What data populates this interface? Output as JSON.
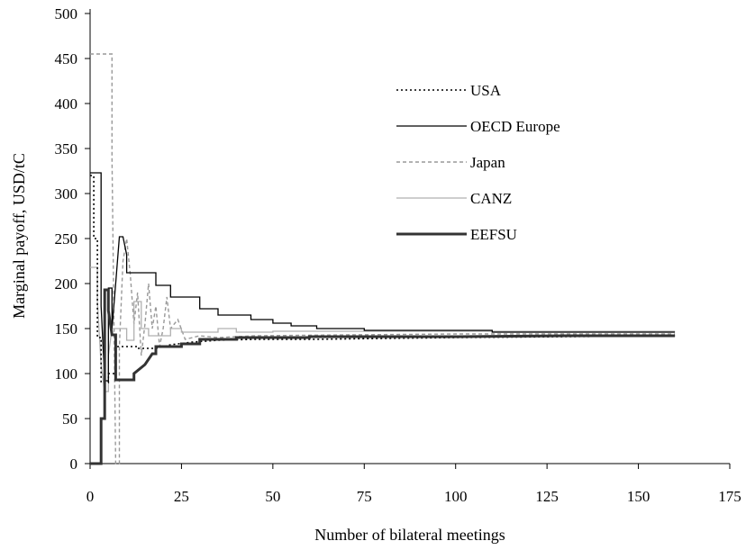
{
  "chart_data": {
    "type": "line",
    "title": "",
    "xlabel": "Number of bilateral meetings",
    "ylabel": "Marginal payoff, USD/tC",
    "xlim": [
      0,
      175
    ],
    "ylim": [
      0,
      500
    ],
    "xticks": [
      0,
      25,
      50,
      75,
      100,
      125,
      150,
      175
    ],
    "yticks": [
      0,
      50,
      100,
      150,
      200,
      250,
      300,
      350,
      400,
      450,
      500
    ],
    "grid": false,
    "legend_position": "top-right",
    "series": [
      {
        "name": "USA",
        "style": "dotted",
        "color": "#000000",
        "points": [
          [
            0,
            320
          ],
          [
            1,
            320
          ],
          [
            1,
            250
          ],
          [
            2,
            250
          ],
          [
            2,
            140
          ],
          [
            3,
            140
          ],
          [
            3,
            90
          ],
          [
            5,
            90
          ],
          [
            5,
            100
          ],
          [
            7,
            100
          ],
          [
            7,
            130
          ],
          [
            13,
            130
          ],
          [
            13,
            128
          ],
          [
            18,
            128
          ],
          [
            22,
            132
          ],
          [
            28,
            135
          ],
          [
            35,
            137
          ],
          [
            45,
            138
          ],
          [
            60,
            138
          ],
          [
            80,
            139
          ],
          [
            100,
            140
          ],
          [
            130,
            141
          ],
          [
            160,
            142
          ]
        ]
      },
      {
        "name": "OECD Europe",
        "style": "solid-thin",
        "color": "#000000",
        "points": [
          [
            0,
            323
          ],
          [
            3,
            323
          ],
          [
            3,
            175
          ],
          [
            4,
            92
          ],
          [
            5,
            92
          ],
          [
            5,
            195
          ],
          [
            6,
            195
          ],
          [
            6,
            150
          ],
          [
            7,
            200
          ],
          [
            8,
            252
          ],
          [
            9,
            252
          ],
          [
            10,
            232
          ],
          [
            10,
            212
          ],
          [
            18,
            212
          ],
          [
            18,
            198
          ],
          [
            22,
            198
          ],
          [
            22,
            185
          ],
          [
            30,
            185
          ],
          [
            30,
            172
          ],
          [
            35,
            172
          ],
          [
            35,
            165
          ],
          [
            44,
            165
          ],
          [
            44,
            160
          ],
          [
            50,
            160
          ],
          [
            50,
            156
          ],
          [
            55,
            156
          ],
          [
            55,
            153
          ],
          [
            62,
            153
          ],
          [
            62,
            150
          ],
          [
            75,
            150
          ],
          [
            75,
            148
          ],
          [
            110,
            148
          ],
          [
            110,
            146
          ],
          [
            160,
            146
          ]
        ]
      },
      {
        "name": "Japan",
        "style": "dashed",
        "color": "#999999",
        "points": [
          [
            0,
            455
          ],
          [
            6,
            455
          ],
          [
            6,
            340
          ],
          [
            7,
            0
          ],
          [
            8,
            0
          ],
          [
            8,
            130
          ],
          [
            9,
            225
          ],
          [
            10,
            250
          ],
          [
            11,
            210
          ],
          [
            12,
            155
          ],
          [
            13,
            190
          ],
          [
            14,
            120
          ],
          [
            15,
            155
          ],
          [
            16,
            200
          ],
          [
            17,
            150
          ],
          [
            18,
            175
          ],
          [
            19,
            130
          ],
          [
            20,
            150
          ],
          [
            21,
            185
          ],
          [
            22,
            150
          ],
          [
            24,
            160
          ],
          [
            26,
            138
          ],
          [
            30,
            142
          ],
          [
            35,
            140
          ],
          [
            45,
            142
          ],
          [
            70,
            143
          ],
          [
            100,
            144
          ],
          [
            130,
            144
          ],
          [
            160,
            144
          ]
        ]
      },
      {
        "name": "CANZ",
        "style": "solid-thin",
        "color": "#b0b0b0",
        "points": [
          [
            0,
            218
          ],
          [
            2,
            218
          ],
          [
            2,
            180
          ],
          [
            3,
            110
          ],
          [
            4,
            80
          ],
          [
            5,
            80
          ],
          [
            5,
            120
          ],
          [
            6,
            150
          ],
          [
            10,
            150
          ],
          [
            10,
            137
          ],
          [
            12,
            137
          ],
          [
            12,
            180
          ],
          [
            14,
            180
          ],
          [
            14,
            150
          ],
          [
            16,
            150
          ],
          [
            16,
            142
          ],
          [
            22,
            142
          ],
          [
            22,
            150
          ],
          [
            25,
            150
          ],
          [
            25,
            146
          ],
          [
            35,
            146
          ],
          [
            35,
            150
          ],
          [
            40,
            150
          ],
          [
            40,
            146
          ],
          [
            50,
            146
          ],
          [
            50,
            147
          ],
          [
            70,
            147
          ],
          [
            90,
            147
          ],
          [
            160,
            147
          ]
        ]
      },
      {
        "name": "EEFSU",
        "style": "solid-thick",
        "color": "#333333",
        "points": [
          [
            0,
            0
          ],
          [
            3,
            0
          ],
          [
            3,
            50
          ],
          [
            4,
            50
          ],
          [
            4,
            193
          ],
          [
            5,
            193
          ],
          [
            5,
            170
          ],
          [
            6,
            143
          ],
          [
            7,
            143
          ],
          [
            7,
            93
          ],
          [
            12,
            93
          ],
          [
            12,
            100
          ],
          [
            15,
            110
          ],
          [
            17,
            122
          ],
          [
            18,
            122
          ],
          [
            18,
            130
          ],
          [
            25,
            130
          ],
          [
            25,
            133
          ],
          [
            30,
            133
          ],
          [
            30,
            138
          ],
          [
            40,
            138
          ],
          [
            40,
            140
          ],
          [
            60,
            140
          ],
          [
            60,
            141
          ],
          [
            100,
            141
          ],
          [
            130,
            142
          ],
          [
            160,
            142
          ]
        ]
      }
    ]
  }
}
